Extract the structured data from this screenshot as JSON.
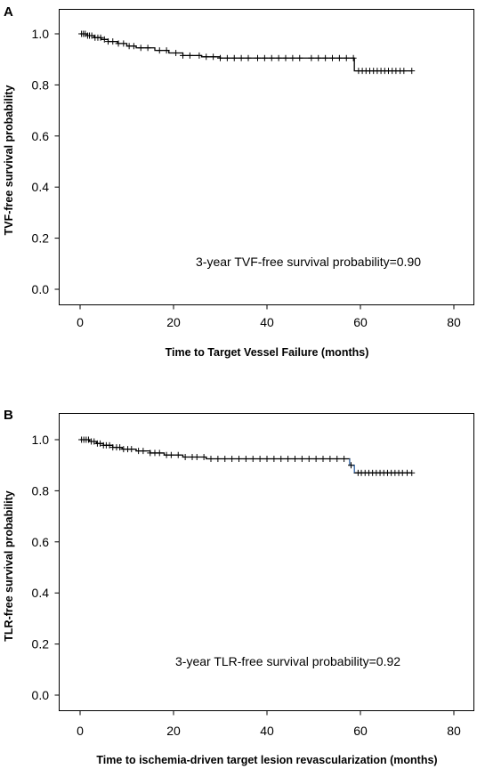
{
  "chart_data": [
    {
      "panel": "A",
      "type": "line",
      "ylabel": "TVF-free survival probability",
      "xlabel": "Time to Target Vessel Failure (months)",
      "annotation": "3-year TVF-free survival probability=0.90",
      "xlim": [
        0,
        80
      ],
      "ylim": [
        0,
        1.0
      ],
      "xticks": [
        "0",
        "20",
        "40",
        "60",
        "80"
      ],
      "yticks": [
        "0.0",
        "0.2",
        "0.4",
        "0.6",
        "0.8",
        "1.0"
      ],
      "curve_color": "#000000",
      "steps": [
        [
          0,
          1.0
        ],
        [
          1.5,
          0.993
        ],
        [
          3,
          0.985
        ],
        [
          4.5,
          0.978
        ],
        [
          6,
          0.97
        ],
        [
          8,
          0.962
        ],
        [
          10,
          0.952
        ],
        [
          12,
          0.945
        ],
        [
          16,
          0.935
        ],
        [
          19,
          0.925
        ],
        [
          22,
          0.915
        ],
        [
          26,
          0.91
        ],
        [
          30,
          0.905
        ],
        [
          58.7,
          0.855
        ],
        [
          71,
          0.855
        ]
      ],
      "censored": [
        0.3,
        0.7,
        1.1,
        1.6,
        2.0,
        2.5,
        3.2,
        3.8,
        4.4,
        5.2,
        6.0,
        7.0,
        8.2,
        9.3,
        10.5,
        11.5,
        13,
        14.5,
        17,
        18.5,
        20.5,
        22,
        23.5,
        25.5,
        27,
        28.5,
        30,
        31.5,
        33,
        34.5,
        36,
        38,
        39.5,
        41,
        42.5,
        44,
        45.5,
        47,
        49.5,
        51,
        52.5,
        54,
        55.5,
        57,
        58.5,
        59.6,
        60.4,
        61.2,
        62,
        62.8,
        63.6,
        64.4,
        65.2,
        66,
        66.8,
        67.6,
        68.5,
        69.3,
        71
      ]
    },
    {
      "panel": "B",
      "type": "line",
      "ylabel": "TLR-free survival probability",
      "xlabel": "Time to ischemia-driven target lesion revascularization (months)",
      "annotation": "3-year TLR-free survival probability=0.92",
      "xlim": [
        0,
        80
      ],
      "ylim": [
        0,
        1.0
      ],
      "xticks": [
        "0",
        "20",
        "40",
        "60",
        "80"
      ],
      "yticks": [
        "0.0",
        "0.2",
        "0.4",
        "0.6",
        "0.8",
        "1.0"
      ],
      "curve_color": "#000000",
      "drop_color": "#4a7fc1",
      "steps": [
        [
          0,
          1.0
        ],
        [
          2,
          0.993
        ],
        [
          3.5,
          0.985
        ],
        [
          5,
          0.978
        ],
        [
          7,
          0.97
        ],
        [
          9,
          0.963
        ],
        [
          12,
          0.956
        ],
        [
          15,
          0.948
        ],
        [
          18,
          0.94
        ],
        [
          22,
          0.932
        ],
        [
          27,
          0.925
        ],
        [
          57.7,
          0.9
        ],
        [
          58.7,
          0.87
        ],
        [
          71,
          0.87
        ]
      ],
      "censored": [
        0.3,
        0.8,
        1.3,
        1.8,
        2.4,
        3.0,
        3.7,
        4.3,
        5.0,
        5.6,
        6.3,
        7.0,
        7.8,
        8.5,
        9.3,
        10.2,
        11,
        12.5,
        13.5,
        15,
        16,
        17,
        18.5,
        19.5,
        21,
        22.5,
        24,
        25,
        26.5,
        28,
        29.5,
        31,
        32.5,
        34,
        35.5,
        37,
        38.5,
        40,
        41.5,
        43,
        44.5,
        46,
        47.5,
        49,
        50.5,
        52,
        53.5,
        55,
        56.5,
        58,
        59.5,
        60.2,
        61,
        61.8,
        62.6,
        63.4,
        64.2,
        65,
        65.8,
        66.6,
        67.4,
        68.2,
        69,
        70,
        71
      ]
    }
  ]
}
